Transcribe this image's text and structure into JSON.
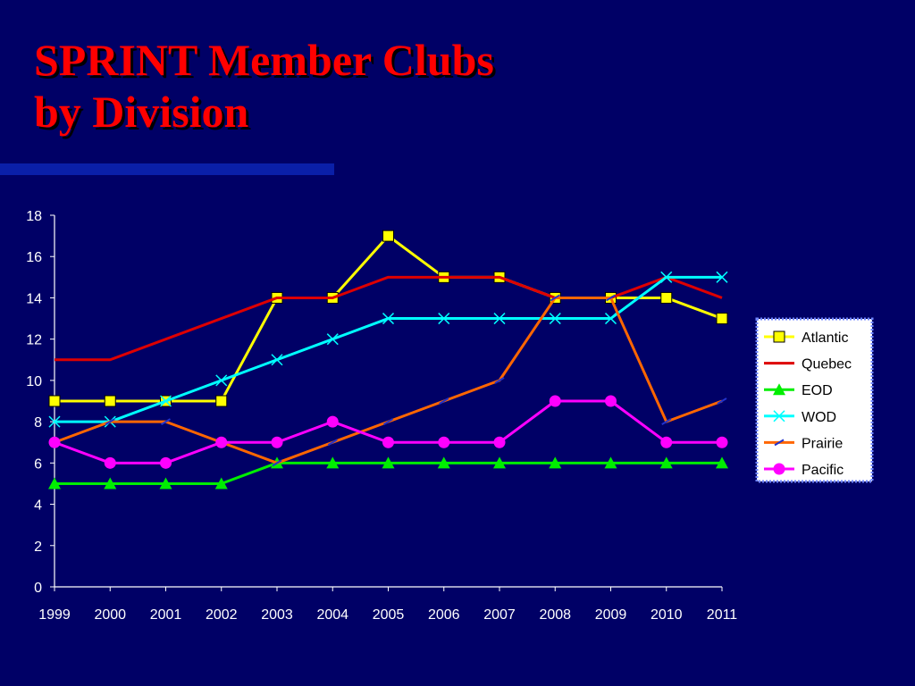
{
  "slide": {
    "title_line1": "SPRINT Member Clubs",
    "title_line2": "by Division"
  },
  "chart_data": {
    "type": "line",
    "title": "",
    "xlabel": "",
    "ylabel": "",
    "ylim": [
      0,
      18
    ],
    "ytick_step": 2,
    "categories": [
      "1999",
      "2000",
      "2001",
      "2002",
      "2003",
      "2004",
      "2005",
      "2006",
      "2007",
      "2008",
      "2009",
      "2010",
      "2011"
    ],
    "legend_position": "right",
    "grid": false,
    "series": [
      {
        "name": "Atlantic",
        "color": "#ffff00",
        "marker": "square",
        "values": [
          9,
          9,
          9,
          9,
          14,
          14,
          17,
          15,
          15,
          14,
          14,
          14,
          13
        ]
      },
      {
        "name": "Quebec",
        "color": "#dd0000",
        "marker": "none",
        "values": [
          11,
          11,
          12,
          13,
          14,
          14,
          15,
          15,
          15,
          14,
          14,
          15,
          14
        ]
      },
      {
        "name": "EOD",
        "color": "#00ee00",
        "marker": "triangle",
        "values": [
          5,
          5,
          5,
          5,
          6,
          6,
          6,
          6,
          6,
          6,
          6,
          6,
          6
        ]
      },
      {
        "name": "WOD",
        "color": "#00ffff",
        "marker": "x",
        "values": [
          8,
          8,
          9,
          10,
          11,
          12,
          13,
          13,
          13,
          13,
          13,
          15,
          15
        ]
      },
      {
        "name": "Prairie",
        "color": "#ff6600",
        "marker": "dash",
        "values": [
          7,
          8,
          8,
          7,
          6,
          7,
          8,
          9,
          10,
          14,
          14,
          8,
          9
        ]
      },
      {
        "name": "Pacific",
        "color": "#ff00ff",
        "marker": "circle",
        "values": [
          7,
          6,
          6,
          7,
          7,
          8,
          7,
          7,
          7,
          9,
          9,
          7,
          7
        ]
      }
    ]
  }
}
